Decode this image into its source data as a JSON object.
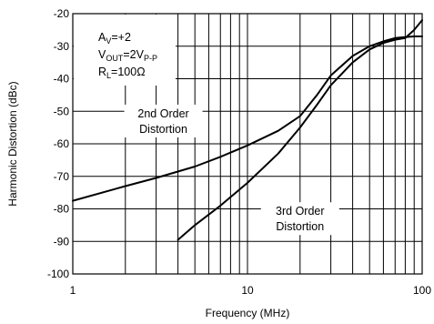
{
  "chart_data": {
    "type": "line",
    "xlabel": "Frequency (MHz)",
    "ylabel": "Harmonic Distortion (dBc)",
    "xscale": "log",
    "xlim": [
      1,
      100
    ],
    "ylim": [
      -100,
      -20
    ],
    "x_ticks": [
      1,
      10,
      100
    ],
    "x_tick_labels": [
      "1",
      "10",
      "100"
    ],
    "y_ticks": [
      -20,
      -30,
      -40,
      -50,
      -60,
      -70,
      -80,
      -90,
      -100
    ],
    "y_tick_labels": [
      "-20",
      "-30",
      "-40",
      "-50",
      "-60",
      "-70",
      "-80",
      "-90",
      "-100"
    ],
    "grid": true,
    "conditions": [
      {
        "main": "A",
        "sub": "V",
        "rest": "=+2",
        "sub2": ""
      },
      {
        "main": "V",
        "sub": "OUT",
        "rest": "=2V",
        "sub2": "P-P"
      },
      {
        "main": "R",
        "sub": "L",
        "rest": "=100Ω",
        "sub2": ""
      }
    ],
    "series": [
      {
        "label_lines": [
          "2nd Order",
          "Distortion"
        ],
        "x": [
          1,
          2,
          3,
          5,
          7,
          10,
          15,
          20,
          25,
          30,
          40,
          50,
          60,
          70,
          80,
          90,
          100
        ],
        "y": [
          -77.5,
          -73,
          -70.5,
          -67,
          -64,
          -60.5,
          -56,
          -51.5,
          -45,
          -39,
          -33,
          -30,
          -28.5,
          -27.5,
          -27.2,
          -27,
          -27
        ]
      },
      {
        "label_lines": [
          "3rd Order",
          "Distortion"
        ],
        "x": [
          4,
          5,
          7,
          10,
          15,
          20,
          25,
          30,
          40,
          50,
          60,
          70,
          80,
          90,
          100
        ],
        "y": [
          -89.5,
          -85,
          -79,
          -72,
          -63,
          -55,
          -48,
          -42,
          -35,
          -31,
          -29,
          -28,
          -27.5,
          -25,
          -22
        ]
      }
    ]
  }
}
